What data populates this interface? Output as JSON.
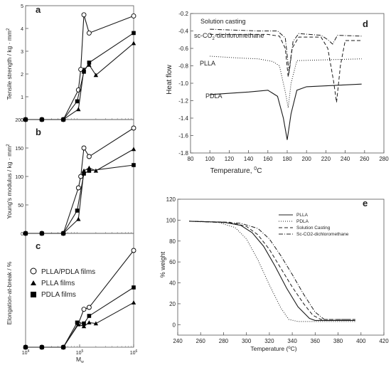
{
  "chart_data": [
    {
      "id": "a",
      "type": "line",
      "panel_label": "a",
      "xlabel": "",
      "ylabel": "Tensile strength  /  kg · mm",
      "ylabel_sup": "2",
      "xscale": "log",
      "xlim": [
        10000,
        1000000
      ],
      "ylim": [
        0,
        5
      ],
      "yticks": [
        "0",
        "1",
        "2",
        "3",
        "4",
        "5"
      ],
      "series": [
        {
          "name": "PLLA/PDLA films",
          "marker": "circle-open",
          "points": [
            [
              10000,
              0
            ],
            [
              20000,
              0
            ],
            [
              50000,
              0
            ],
            [
              95000,
              1.3
            ],
            [
              105000,
              2.2
            ],
            [
              120000,
              4.6
            ],
            [
              150000,
              3.8
            ],
            [
              1000000,
              4.55
            ]
          ]
        },
        {
          "name": "PLLA films",
          "marker": "triangle",
          "points": [
            [
              10000,
              0
            ],
            [
              20000,
              0
            ],
            [
              50000,
              0
            ],
            [
              95000,
              0.45
            ],
            [
              120000,
              2.2
            ],
            [
              150000,
              2.4
            ],
            [
              200000,
              1.95
            ],
            [
              1000000,
              3.35
            ]
          ]
        },
        {
          "name": "PDLA films",
          "marker": "square",
          "points": [
            [
              10000,
              0
            ],
            [
              20000,
              0
            ],
            [
              50000,
              0
            ],
            [
              90000,
              0.8
            ],
            [
              120000,
              2.1
            ],
            [
              150000,
              2.5
            ],
            [
              1000000,
              3.8
            ]
          ]
        }
      ]
    },
    {
      "id": "b",
      "type": "line",
      "panel_label": "b",
      "xlabel": "",
      "ylabel": "Young's modulus  /  kg · mm",
      "ylabel_sup": "2",
      "xscale": "log",
      "xlim": [
        10000,
        1000000
      ],
      "ylim": [
        0,
        200
      ],
      "yticks": [
        "0",
        "50",
        "100",
        "150",
        "200"
      ],
      "series": [
        {
          "name": "PLLA/PDLA films",
          "marker": "circle-open",
          "points": [
            [
              10000,
              0
            ],
            [
              20000,
              0
            ],
            [
              50000,
              0
            ],
            [
              95000,
              80
            ],
            [
              105000,
              100
            ],
            [
              120000,
              150
            ],
            [
              150000,
              135
            ],
            [
              1000000,
              185
            ]
          ]
        },
        {
          "name": "PLLA films",
          "marker": "triangle",
          "points": [
            [
              10000,
              0
            ],
            [
              20000,
              0
            ],
            [
              50000,
              0
            ],
            [
              95000,
              25
            ],
            [
              120000,
              110
            ],
            [
              150000,
              115
            ],
            [
              200000,
              110
            ],
            [
              1000000,
              148
            ]
          ]
        },
        {
          "name": "PDLA films",
          "marker": "square",
          "points": [
            [
              10000,
              0
            ],
            [
              20000,
              0
            ],
            [
              50000,
              0
            ],
            [
              90000,
              40
            ],
            [
              120000,
              105
            ],
            [
              150000,
              110
            ],
            [
              1000000,
              120
            ]
          ]
        }
      ]
    },
    {
      "id": "c",
      "type": "line",
      "panel_label": "c",
      "xlabel": "M",
      "xlabel_sub": "w",
      "ylabel": "Elongation-at-break  /  %",
      "xscale": "log",
      "xlim": [
        10000,
        1000000
      ],
      "ylim": [
        0,
        12
      ],
      "xticks": [
        "10",
        "10",
        "10"
      ],
      "xticks_sup": [
        "4",
        "5",
        "6"
      ],
      "legend": {
        "placement": "upper-left",
        "entries": [
          "PLLA/PDLA films",
          "PLLA films",
          "PDLA films"
        ]
      },
      "series": [
        {
          "name": "PLLA/PDLA films",
          "marker": "circle-open",
          "points": [
            [
              10000,
              0
            ],
            [
              20000,
              0
            ],
            [
              50000,
              0
            ],
            [
              95000,
              2.5
            ],
            [
              120000,
              4.0
            ],
            [
              150000,
              4.2
            ],
            [
              1000000,
              10.2
            ]
          ]
        },
        {
          "name": "PLLA films",
          "marker": "triangle",
          "points": [
            [
              10000,
              0
            ],
            [
              20000,
              0
            ],
            [
              50000,
              0
            ],
            [
              95000,
              2.4
            ],
            [
              120000,
              2.2
            ],
            [
              150000,
              2.6
            ],
            [
              200000,
              2.5
            ],
            [
              1000000,
              4.7
            ]
          ]
        },
        {
          "name": "PDLA films",
          "marker": "square",
          "points": [
            [
              10000,
              0
            ],
            [
              20000,
              0
            ],
            [
              50000,
              0
            ],
            [
              90000,
              2.6
            ],
            [
              120000,
              2.5
            ],
            [
              150000,
              3.3
            ],
            [
              1000000,
              6.3
            ]
          ]
        }
      ]
    },
    {
      "id": "d",
      "type": "line",
      "panel_label": "d",
      "xlabel": "Temperature,",
      "xlabel_unit": "0",
      "xlabel_unit_tail": "C",
      "ylabel": "Heat flow",
      "xlim": [
        80,
        280
      ],
      "ylim": [
        -1.8,
        -0.2
      ],
      "xticks": [
        "80",
        "100",
        "120",
        "140",
        "160",
        "180",
        "200",
        "220",
        "240",
        "260",
        "280"
      ],
      "yticks": [
        "-1.8",
        "-1.6",
        "-1.4",
        "-1.2",
        "-1.0",
        "-0.8",
        "-0.6",
        "-0.4",
        "-0.2"
      ],
      "annotations": [
        "Solution casting",
        "sc-CO",
        "2",
        "-dichloromethane",
        "PLLA",
        "PDLA"
      ],
      "series": [
        {
          "name": "Solution casting",
          "style": "dash-dot",
          "points": [
            [
              100,
              -0.38
            ],
            [
              150,
              -0.4
            ],
            [
              170,
              -0.4
            ],
            [
              178,
              -0.48
            ],
            [
              182,
              -0.88
            ],
            [
              186,
              -0.52
            ],
            [
              192,
              -0.43
            ],
            [
              215,
              -0.45
            ],
            [
              222,
              -0.5
            ],
            [
              227,
              -0.55
            ],
            [
              232,
              -0.45
            ],
            [
              257,
              -0.46
            ]
          ]
        },
        {
          "name": "sc-CO2-dichloromethane",
          "style": "dash",
          "points": [
            [
              100,
              -0.44
            ],
            [
              160,
              -0.44
            ],
            [
              172,
              -0.46
            ],
            [
              178,
              -0.6
            ],
            [
              181,
              -0.93
            ],
            [
              185,
              -0.6
            ],
            [
              192,
              -0.47
            ],
            [
              215,
              -0.47
            ],
            [
              222,
              -0.6
            ],
            [
              228,
              -0.98
            ],
            [
              231,
              -1.22
            ],
            [
              235,
              -0.8
            ],
            [
              240,
              -0.51
            ],
            [
              257,
              -0.51
            ]
          ]
        },
        {
          "name": "PLLA",
          "style": "dotted",
          "points": [
            [
              100,
              -0.69
            ],
            [
              130,
              -0.71
            ],
            [
              150,
              -0.72
            ],
            [
              165,
              -0.75
            ],
            [
              172,
              -0.8
            ],
            [
              178,
              -1.1
            ],
            [
              181,
              -1.28
            ],
            [
              184,
              -1.0
            ],
            [
              190,
              -0.74
            ],
            [
              257,
              -0.72
            ]
          ]
        },
        {
          "name": "PDLA",
          "style": "solid",
          "points": [
            [
              100,
              -1.13
            ],
            [
              140,
              -1.1
            ],
            [
              160,
              -1.08
            ],
            [
              170,
              -1.15
            ],
            [
              176,
              -1.4
            ],
            [
              180,
              -1.65
            ],
            [
              184,
              -1.35
            ],
            [
              190,
              -1.08
            ],
            [
              200,
              -1.04
            ],
            [
              257,
              -1.01
            ]
          ]
        }
      ]
    },
    {
      "id": "e",
      "type": "line",
      "panel_label": "e",
      "xlabel": "Temperature (",
      "xlabel_unit": "o",
      "xlabel_unit_tail": "C)",
      "ylabel": "% weight",
      "xlim": [
        240,
        420
      ],
      "ylim": [
        -10,
        120
      ],
      "xticks": [
        "240",
        "260",
        "280",
        "300",
        "320",
        "340",
        "360",
        "380",
        "400",
        "420"
      ],
      "yticks": [
        "0",
        "20",
        "40",
        "60",
        "80",
        "100",
        "120"
      ],
      "legend": {
        "placement": "top-right",
        "entries": [
          "PLLA",
          "PDLA",
          "Solution Casting",
          "Sc-CO2-dichloromethane"
        ]
      },
      "series": [
        {
          "name": "PLLA",
          "style": "solid",
          "points": [
            [
              250,
              99
            ],
            [
              280,
              98
            ],
            [
              295,
              95
            ],
            [
              305,
              88
            ],
            [
              315,
              75
            ],
            [
              325,
              56
            ],
            [
              335,
              35
            ],
            [
              345,
              17
            ],
            [
              355,
              6
            ],
            [
              360,
              4
            ],
            [
              395,
              4
            ]
          ]
        },
        {
          "name": "PDLA",
          "style": "dotted",
          "points": [
            [
              250,
              99
            ],
            [
              275,
              98
            ],
            [
              290,
              93
            ],
            [
              300,
              82
            ],
            [
              310,
              62
            ],
            [
              320,
              38
            ],
            [
              330,
              16
            ],
            [
              337,
              5
            ],
            [
              345,
              3
            ],
            [
              395,
              3
            ]
          ]
        },
        {
          "name": "Solution Casting",
          "style": "dash",
          "points": [
            [
              250,
              99
            ],
            [
              285,
              98
            ],
            [
              300,
              94
            ],
            [
              310,
              86
            ],
            [
              320,
              72
            ],
            [
              330,
              54
            ],
            [
              340,
              36
            ],
            [
              350,
              20
            ],
            [
              358,
              9
            ],
            [
              365,
              5
            ],
            [
              395,
              5
            ]
          ]
        },
        {
          "name": "Sc-CO2-dichloromethane",
          "style": "dash-dot",
          "points": [
            [
              250,
              99
            ],
            [
              295,
              97
            ],
            [
              310,
              92
            ],
            [
              320,
              82
            ],
            [
              330,
              66
            ],
            [
              340,
              48
            ],
            [
              350,
              29
            ],
            [
              360,
              12
            ],
            [
              368,
              5
            ],
            [
              395,
              5
            ]
          ]
        }
      ]
    }
  ]
}
